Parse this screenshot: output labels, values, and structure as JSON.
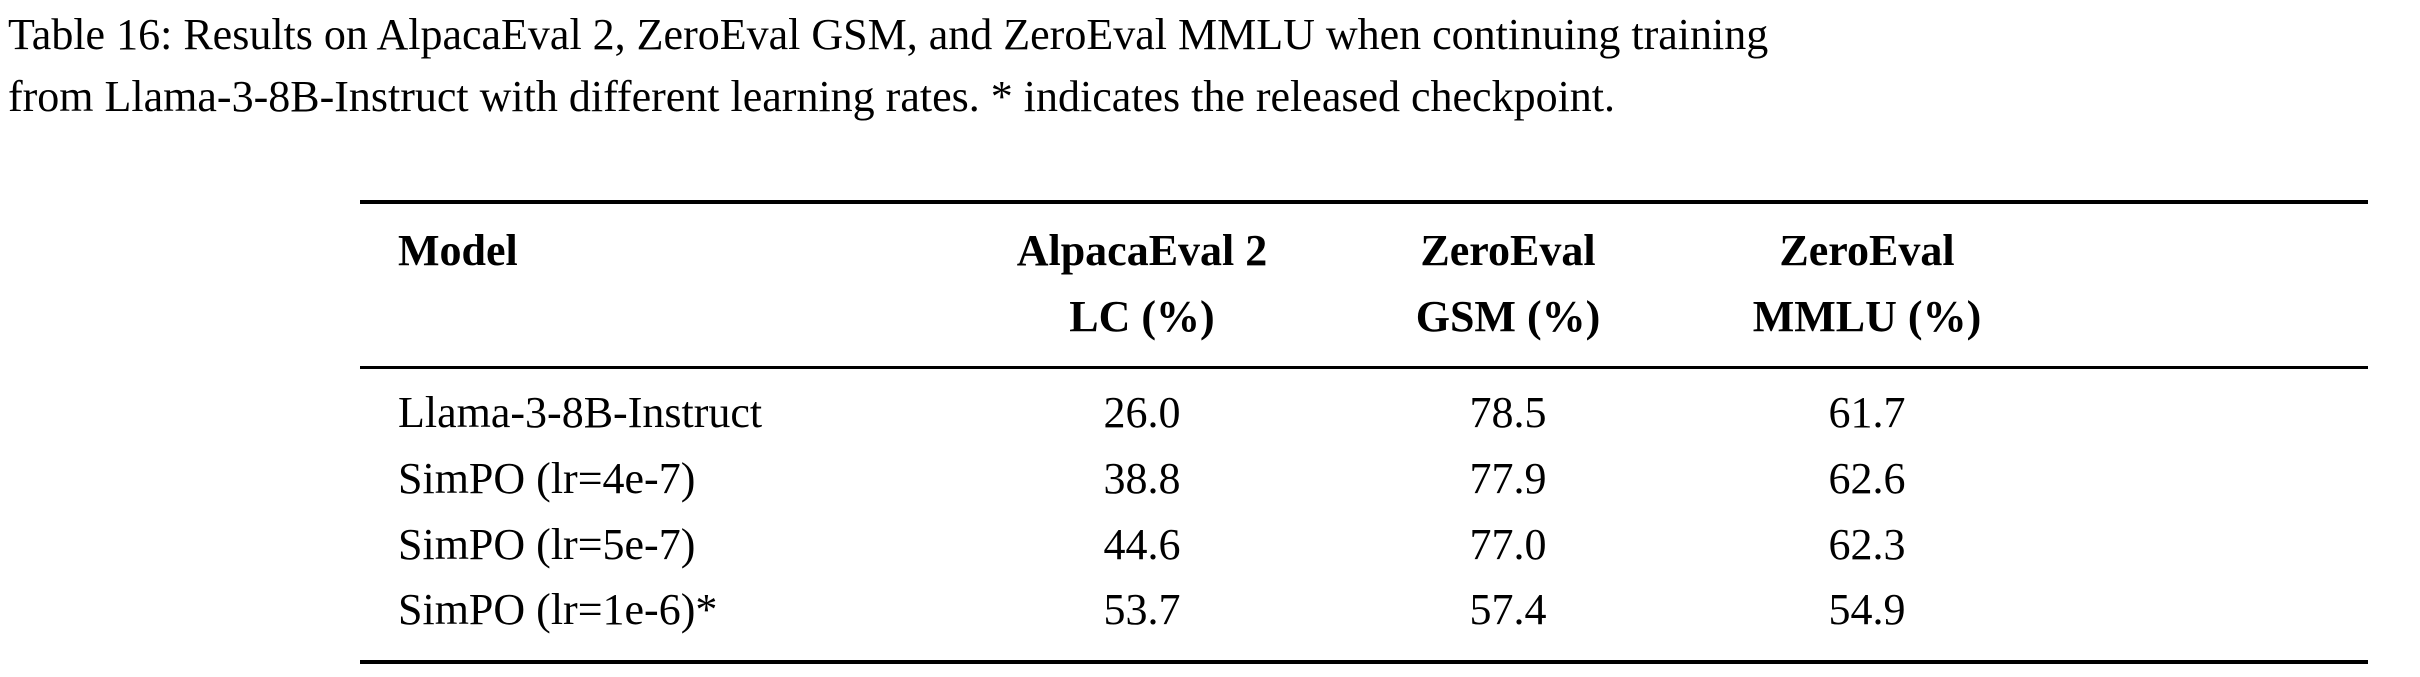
{
  "caption": {
    "line1": "Table 16: Results on AlpacaEval 2, ZeroEval GSM, and ZeroEval MMLU when continuing training",
    "line2": "from Llama-3-8B-Instruct with different learning rates. * indicates the released checkpoint."
  },
  "table": {
    "headers": [
      {
        "line1": "Model",
        "line2": ""
      },
      {
        "line1": "AlpacaEval 2",
        "line2": "LC (%)"
      },
      {
        "line1": "ZeroEval",
        "line2": "GSM (%)"
      },
      {
        "line1": "ZeroEval",
        "line2": "MMLU (%)"
      }
    ],
    "rows": [
      [
        "Llama-3-8B-Instruct",
        "26.0",
        "78.5",
        "61.7"
      ],
      [
        "SimPO (lr=4e-7)",
        "38.8",
        "77.9",
        "62.6"
      ],
      [
        "SimPO (lr=5e-7)",
        "44.6",
        "77.0",
        "62.3"
      ],
      [
        "SimPO (lr=1e-6)*",
        "53.7",
        "57.4",
        "54.9"
      ]
    ]
  }
}
